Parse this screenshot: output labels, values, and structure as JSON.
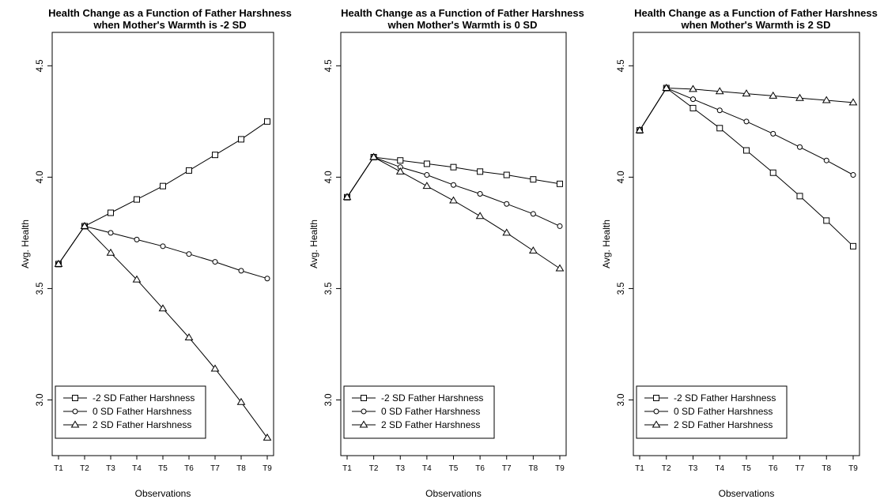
{
  "chart_data": [
    {
      "type": "line",
      "title": "Health Change as a Function of Father Harshness",
      "subtitle": "when Mother's Warmth is -2 SD",
      "xlabel": "Observations",
      "ylabel": "Avg. Health",
      "categories": [
        "T1",
        "T2",
        "T3",
        "T4",
        "T5",
        "T6",
        "T7",
        "T8",
        "T9"
      ],
      "ylim": [
        2.75,
        4.65
      ],
      "yticks": [
        3.0,
        3.5,
        4.0,
        4.5
      ],
      "ytick_labels": [
        "3.0",
        "3.5",
        "4.0",
        "4.5"
      ],
      "grid": false,
      "legend_position": "bottom-left",
      "series": [
        {
          "name": "-2 SD Father Harshness",
          "marker": "square",
          "values": [
            3.61,
            3.78,
            3.84,
            3.9,
            3.96,
            4.03,
            4.1,
            4.17,
            4.25
          ]
        },
        {
          "name": "0 SD Father Harshness",
          "marker": "circle",
          "values": [
            3.61,
            3.78,
            3.75,
            3.72,
            3.69,
            3.655,
            3.62,
            3.58,
            3.545
          ]
        },
        {
          "name": "2 SD Father Harshness",
          "marker": "triangle",
          "values": [
            3.61,
            3.78,
            3.66,
            3.54,
            3.41,
            3.28,
            3.14,
            2.99,
            2.83
          ]
        }
      ]
    },
    {
      "type": "line",
      "title": "Health Change as a Function of Father Harshness",
      "subtitle": "when Mother's Warmth is 0 SD",
      "xlabel": "Observations",
      "ylabel": "Avg. Health",
      "categories": [
        "T1",
        "T2",
        "T3",
        "T4",
        "T5",
        "T6",
        "T7",
        "T8",
        "T9"
      ],
      "ylim": [
        2.75,
        4.65
      ],
      "yticks": [
        3.0,
        3.5,
        4.0,
        4.5
      ],
      "ytick_labels": [
        "3.0",
        "3.5",
        "4.0",
        "4.5"
      ],
      "grid": false,
      "legend_position": "bottom-left",
      "series": [
        {
          "name": "-2 SD Father Harshness",
          "marker": "square",
          "values": [
            3.91,
            4.09,
            4.075,
            4.06,
            4.045,
            4.025,
            4.01,
            3.99,
            3.97
          ]
        },
        {
          "name": "0 SD Father Harshness",
          "marker": "circle",
          "values": [
            3.91,
            4.09,
            4.045,
            4.01,
            3.965,
            3.925,
            3.88,
            3.835,
            3.78
          ]
        },
        {
          "name": "2 SD Father Harshness",
          "marker": "triangle",
          "values": [
            3.91,
            4.09,
            4.025,
            3.96,
            3.895,
            3.825,
            3.75,
            3.67,
            3.59
          ]
        }
      ]
    },
    {
      "type": "line",
      "title": "Health Change as a Function of Father Harshness",
      "subtitle": "when Mother's Warmth is 2 SD",
      "xlabel": "Observations",
      "ylabel": "Avg. Health",
      "categories": [
        "T1",
        "T2",
        "T3",
        "T4",
        "T5",
        "T6",
        "T7",
        "T8",
        "T9"
      ],
      "ylim": [
        2.75,
        4.65
      ],
      "yticks": [
        3.0,
        3.5,
        4.0,
        4.5
      ],
      "ytick_labels": [
        "3.0",
        "3.5",
        "4.0",
        "4.5"
      ],
      "grid": false,
      "legend_position": "bottom-left",
      "series": [
        {
          "name": "-2 SD Father Harshness",
          "marker": "square",
          "values": [
            4.21,
            4.4,
            4.31,
            4.22,
            4.12,
            4.02,
            3.915,
            3.805,
            3.69
          ]
        },
        {
          "name": "0 SD Father Harshness",
          "marker": "circle",
          "values": [
            4.21,
            4.4,
            4.35,
            4.3,
            4.25,
            4.195,
            4.135,
            4.075,
            4.01
          ]
        },
        {
          "name": "2 SD Father Harshness",
          "marker": "triangle",
          "values": [
            4.21,
            4.4,
            4.395,
            4.385,
            4.375,
            4.365,
            4.355,
            4.345,
            4.335
          ]
        }
      ]
    }
  ]
}
